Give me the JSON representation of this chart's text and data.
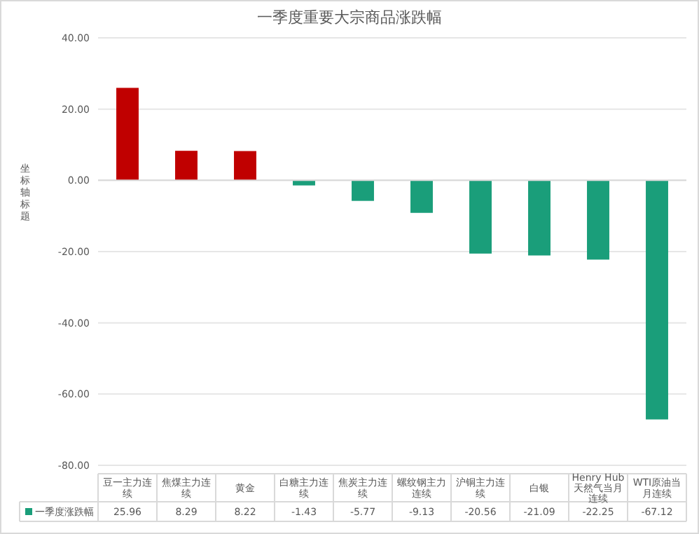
{
  "chart_data": {
    "type": "bar",
    "title": "一季度重要大宗商品涨跌幅",
    "ylabel": "坐标轴标题",
    "categories": [
      "豆一主力连续",
      "焦煤主力连续",
      "黄金",
      "白糖主力连续",
      "焦炭主力连续",
      "螺纹钢主力连续",
      "沪铜主力连续",
      "白银",
      "Henry Hub天然气当月连续",
      "WTI原油当月连续"
    ],
    "series": [
      {
        "name": "一季度涨跌幅",
        "color": "#1a9e7a",
        "colors": [
          "#c00000",
          "#c00000",
          "#c00000",
          "#1a9e7a",
          "#1a9e7a",
          "#1a9e7a",
          "#1a9e7a",
          "#1a9e7a",
          "#1a9e7a",
          "#1a9e7a"
        ],
        "values": [
          25.96,
          8.29,
          8.22,
          -1.43,
          -5.77,
          -9.13,
          -20.56,
          -21.09,
          -22.25,
          -67.12
        ]
      }
    ],
    "ylim": [
      -80,
      40
    ],
    "yticks": [
      {
        "value": 40,
        "label": "40.00"
      },
      {
        "value": 20,
        "label": "20.00"
      },
      {
        "value": 0,
        "label": "0.00"
      },
      {
        "value": -20,
        "label": "-20.00"
      },
      {
        "value": -40,
        "label": "-40.00"
      },
      {
        "value": -60,
        "label": "-60.00"
      },
      {
        "value": -80,
        "label": "-80.00"
      }
    ],
    "grid": "y",
    "legend": "bottom",
    "data_labels": true
  }
}
